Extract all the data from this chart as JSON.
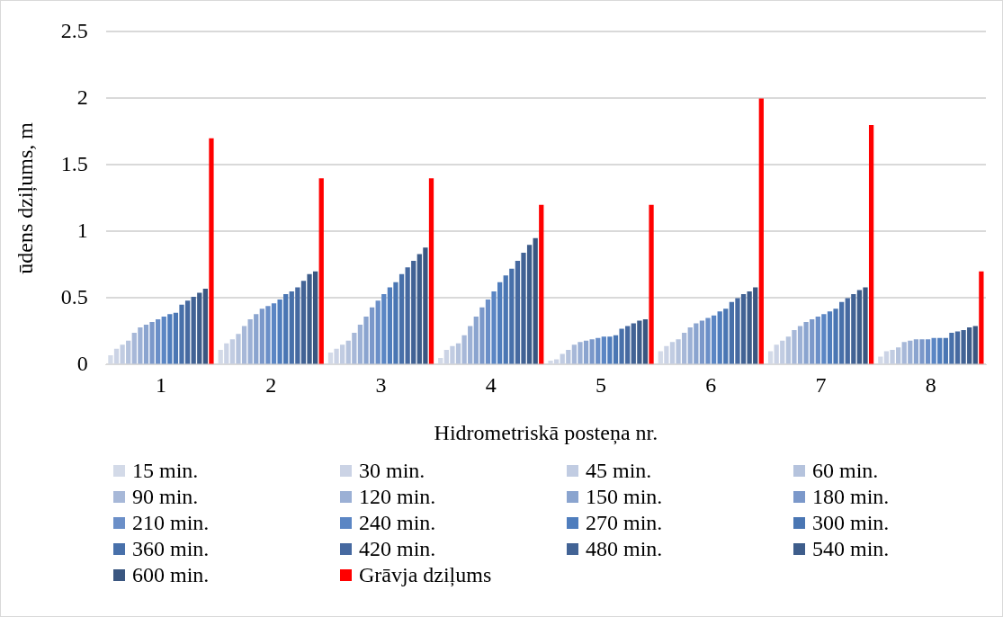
{
  "chart_data": {
    "type": "bar",
    "xlabel": "Hidrometriskā posteņa nr.",
    "ylabel": "ūdens dziļums, m",
    "categories": [
      "1",
      "2",
      "3",
      "4",
      "5",
      "6",
      "7",
      "8"
    ],
    "ylim": [
      0,
      2.5
    ],
    "yticks": [
      0,
      0.5,
      1,
      1.5,
      2,
      2.5
    ],
    "grid": "y",
    "legend": "bottom",
    "series": [
      {
        "name": "15 min.",
        "color": "#d3dae8",
        "values": [
          0.07,
          0.11,
          0.09,
          0.05,
          0.03,
          0.1,
          0.1,
          0.06
        ]
      },
      {
        "name": "30 min.",
        "color": "#cbd3e5",
        "values": [
          0.12,
          0.16,
          0.12,
          0.11,
          0.04,
          0.14,
          0.15,
          0.1
        ]
      },
      {
        "name": "45 min.",
        "color": "#c1cce2",
        "values": [
          0.15,
          0.19,
          0.15,
          0.14,
          0.08,
          0.17,
          0.18,
          0.11
        ]
      },
      {
        "name": "60 min.",
        "color": "#b5c3dd",
        "values": [
          0.18,
          0.23,
          0.18,
          0.16,
          0.11,
          0.19,
          0.21,
          0.13
        ]
      },
      {
        "name": "90 min.",
        "color": "#a7b8d8",
        "values": [
          0.24,
          0.29,
          0.24,
          0.22,
          0.15,
          0.24,
          0.26,
          0.17
        ]
      },
      {
        "name": "120 min.",
        "color": "#9bb0d5",
        "values": [
          0.28,
          0.34,
          0.3,
          0.29,
          0.17,
          0.28,
          0.29,
          0.18
        ]
      },
      {
        "name": "150 min.",
        "color": "#8aa4cf",
        "values": [
          0.3,
          0.38,
          0.36,
          0.36,
          0.18,
          0.31,
          0.32,
          0.19
        ]
      },
      {
        "name": "180 min.",
        "color": "#7b98ca",
        "values": [
          0.32,
          0.42,
          0.43,
          0.43,
          0.19,
          0.33,
          0.34,
          0.19
        ]
      },
      {
        "name": "210 min.",
        "color": "#6b8fc8",
        "values": [
          0.34,
          0.44,
          0.48,
          0.49,
          0.2,
          0.35,
          0.36,
          0.19
        ]
      },
      {
        "name": "240 min.",
        "color": "#5b86c4",
        "values": [
          0.36,
          0.46,
          0.53,
          0.55,
          0.21,
          0.37,
          0.38,
          0.2
        ]
      },
      {
        "name": "270 min.",
        "color": "#4f7dbd",
        "values": [
          0.38,
          0.49,
          0.58,
          0.62,
          0.21,
          0.4,
          0.4,
          0.2
        ]
      },
      {
        "name": "300 min.",
        "color": "#4a76b3",
        "values": [
          0.39,
          0.53,
          0.62,
          0.67,
          0.22,
          0.42,
          0.42,
          0.2
        ]
      },
      {
        "name": "360 min.",
        "color": "#4870aa",
        "values": [
          0.45,
          0.55,
          0.68,
          0.72,
          0.27,
          0.47,
          0.47,
          0.24
        ]
      },
      {
        "name": "420 min.",
        "color": "#4669a0",
        "values": [
          0.48,
          0.58,
          0.73,
          0.78,
          0.29,
          0.5,
          0.5,
          0.25
        ]
      },
      {
        "name": "480 min.",
        "color": "#426395",
        "values": [
          0.51,
          0.63,
          0.78,
          0.84,
          0.31,
          0.53,
          0.53,
          0.26
        ]
      },
      {
        "name": "540 min.",
        "color": "#3e5d8b",
        "values": [
          0.54,
          0.68,
          0.83,
          0.9,
          0.33,
          0.55,
          0.56,
          0.28
        ]
      },
      {
        "name": "600 min.",
        "color": "#3a5680",
        "values": [
          0.57,
          0.7,
          0.88,
          0.95,
          0.34,
          0.58,
          0.58,
          0.29
        ]
      },
      {
        "name": "Grāvja dziļums",
        "color": "#ff0000",
        "values": [
          1.7,
          1.4,
          1.4,
          1.2,
          1.2,
          2.0,
          1.8,
          0.7
        ]
      }
    ]
  }
}
